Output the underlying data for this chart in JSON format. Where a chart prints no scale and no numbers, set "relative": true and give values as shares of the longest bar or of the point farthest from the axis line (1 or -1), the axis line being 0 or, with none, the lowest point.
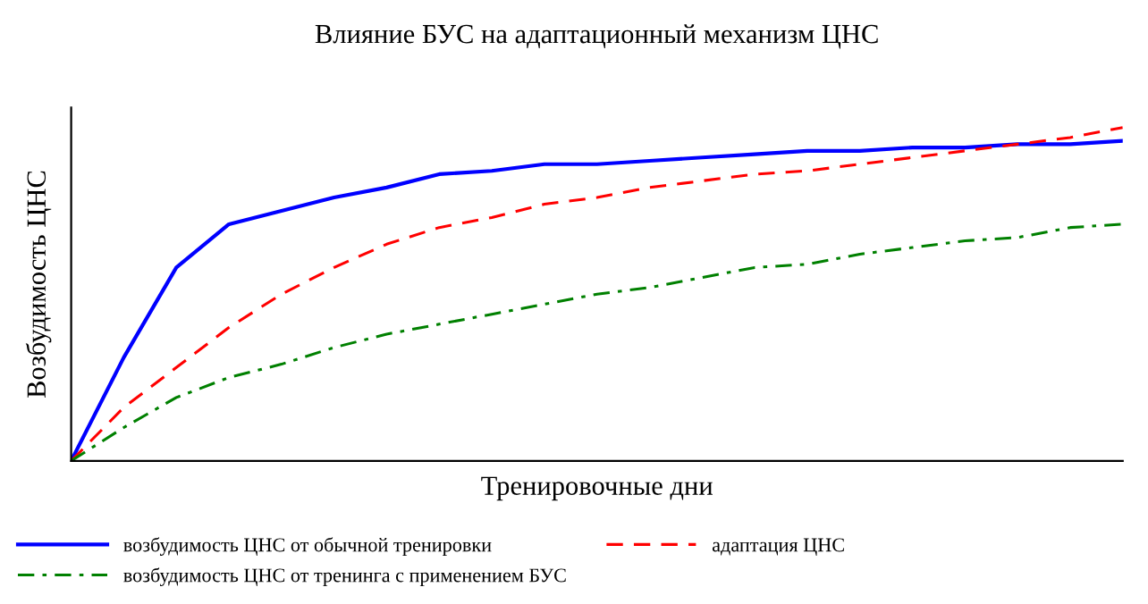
{
  "chart_data": {
    "type": "line",
    "title": "Влияние БУС на адаптационный механизм ЦНС",
    "xlabel": "Тренировочные дни",
    "ylabel": "Возбудимость ЦНС",
    "relative": true,
    "legend": "bottom",
    "grid": false,
    "tick_labels": false,
    "categories": [
      null,
      null,
      null,
      null,
      null,
      null,
      null,
      null,
      null,
      null,
      null,
      null,
      null,
      null,
      null,
      null,
      null,
      null,
      null,
      null,
      null
    ],
    "series": [
      {
        "name": "возбудимость ЦНС от обычной тренировки",
        "color": "#0000ff",
        "line_style": "solid",
        "values": [
          0,
          0.31,
          0.58,
          0.71,
          0.75,
          0.79,
          0.82,
          0.86,
          0.87,
          0.89,
          0.89,
          0.9,
          0.91,
          0.92,
          0.93,
          0.93,
          0.94,
          0.94,
          0.95,
          0.95,
          0.96
        ]
      },
      {
        "name": "адаптация ЦНС",
        "color": "#ff0000",
        "line_style": "dashed",
        "values": [
          0,
          0.16,
          0.28,
          0.4,
          0.5,
          0.58,
          0.65,
          0.7,
          0.73,
          0.77,
          0.79,
          0.82,
          0.84,
          0.86,
          0.87,
          0.89,
          0.91,
          0.93,
          0.95,
          0.97,
          1
        ]
      },
      {
        "name": "возбудимость ЦНС от тренинга с применением БУС",
        "color": "#008000",
        "line_style": "dashdot",
        "values": [
          0,
          0.1,
          0.19,
          0.25,
          0.29,
          0.34,
          0.38,
          0.41,
          0.44,
          0.47,
          0.5,
          0.52,
          0.55,
          0.58,
          0.59,
          0.62,
          0.64,
          0.66,
          0.67,
          0.7,
          0.71
        ]
      }
    ]
  }
}
